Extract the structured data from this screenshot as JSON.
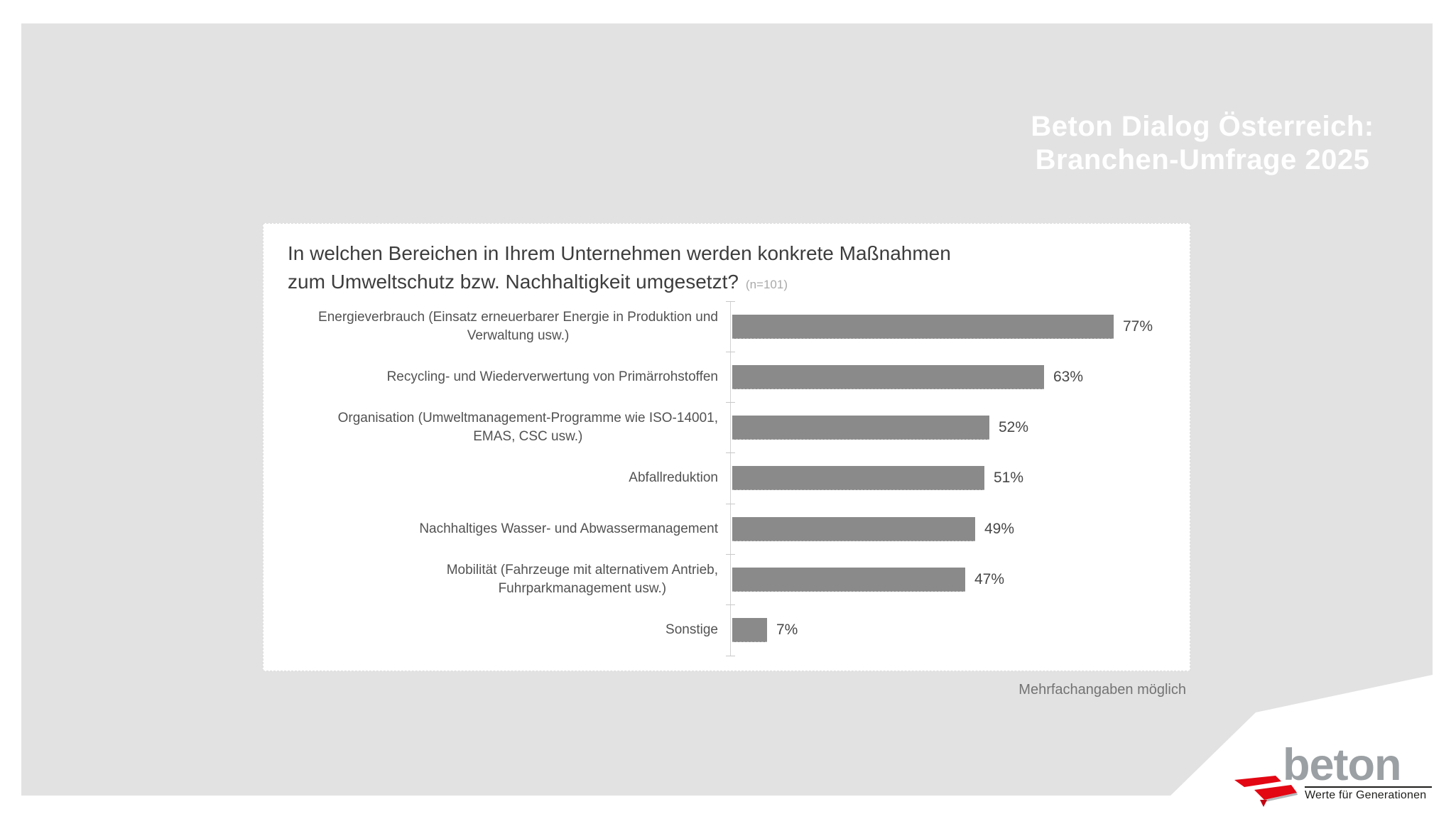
{
  "header": {
    "title_line1": "Beton Dialog Österreich:",
    "title_line2": "Branchen-Umfrage 2025"
  },
  "chart_data": {
    "type": "bar",
    "orientation": "horizontal",
    "title_line1": "In welchen Bereichen in Ihrem Unternehmen werden konkrete Maßnahmen",
    "title_line2": "zum Umweltschutz bzw. Nachhaltigkeit umgesetzt?",
    "sample_note": "(n=101)",
    "categories": [
      "Energieverbrauch (Einsatz erneuerbarer Energie in Produktion und\nVerwaltung usw.)",
      "Recycling- und Wiederverwertung von Primärrohstoffen",
      "Organisation (Umweltmanagement-Programme wie ISO-14001,\nEMAS, CSC usw.)",
      "Abfallreduktion",
      "Nachhaltiges Wasser- und Abwassermanagement",
      "Mobilität (Fahrzeuge mit alternativem Antrieb,\nFuhrparkmanagement usw.)",
      "Sonstige"
    ],
    "values": [
      77,
      63,
      52,
      51,
      49,
      47,
      7
    ],
    "value_labels": [
      "77%",
      "63%",
      "52%",
      "51%",
      "49%",
      "47%",
      "7%"
    ],
    "xlim": [
      0,
      100
    ],
    "bar_color": "#8a8a8a",
    "grid": "category ticks on baseline axis only",
    "legend": "none",
    "footnote": "Mehrfachangaben möglich"
  },
  "logo": {
    "brand": "beton",
    "tagline": "Werte für Generationen",
    "brand_color": "#9ba0a4",
    "accent_red": "#e30613",
    "tagline_color": "#1d1d1b"
  },
  "colors": {
    "slide_background": "#e2e2e2",
    "page_background": "#ffffff",
    "header_text": "#ffffff",
    "title_text": "#3d3d3d",
    "label_text": "#525252",
    "axis": "#d2d2d2"
  }
}
